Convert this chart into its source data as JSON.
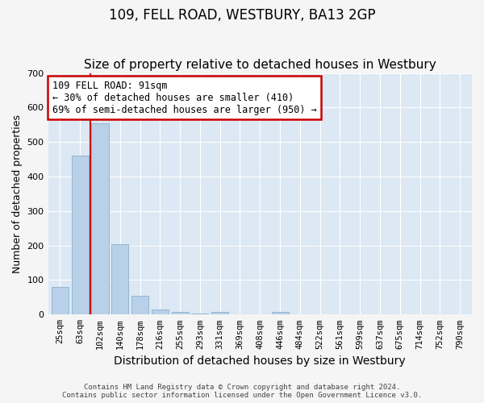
{
  "title": "109, FELL ROAD, WESTBURY, BA13 2GP",
  "subtitle": "Size of property relative to detached houses in Westbury",
  "xlabel": "Distribution of detached houses by size in Westbury",
  "ylabel": "Number of detached properties",
  "footer_line1": "Contains HM Land Registry data © Crown copyright and database right 2024.",
  "footer_line2": "Contains public sector information licensed under the Open Government Licence v3.0.",
  "categories": [
    "25sqm",
    "63sqm",
    "102sqm",
    "140sqm",
    "178sqm",
    "216sqm",
    "255sqm",
    "293sqm",
    "331sqm",
    "369sqm",
    "408sqm",
    "446sqm",
    "484sqm",
    "522sqm",
    "561sqm",
    "599sqm",
    "637sqm",
    "675sqm",
    "714sqm",
    "752sqm",
    "790sqm"
  ],
  "values": [
    80,
    460,
    555,
    205,
    55,
    15,
    8,
    2,
    8,
    0,
    0,
    8,
    0,
    0,
    0,
    0,
    0,
    0,
    0,
    0,
    0
  ],
  "bar_color": "#b8d0e8",
  "bar_edge_color": "#8ab0cc",
  "background_color": "#dce8f4",
  "grid_color": "#ffffff",
  "annotation_line1": "109 FELL ROAD: 91sqm",
  "annotation_line2": "← 30% of detached houses are smaller (410)",
  "annotation_line3": "69% of semi-detached houses are larger (950) →",
  "annotation_box_color": "#ffffff",
  "annotation_box_edge_color": "#cc0000",
  "vline_color": "#cc0000",
  "vline_x_index": 1.5,
  "ylim": [
    0,
    700
  ],
  "yticks": [
    0,
    100,
    200,
    300,
    400,
    500,
    600,
    700
  ],
  "title_fontsize": 12,
  "subtitle_fontsize": 11,
  "ylabel_fontsize": 9,
  "xlabel_fontsize": 10,
  "tick_fontsize": 7.5,
  "annotation_fontsize": 8.5,
  "fig_bg_color": "#f5f5f5"
}
